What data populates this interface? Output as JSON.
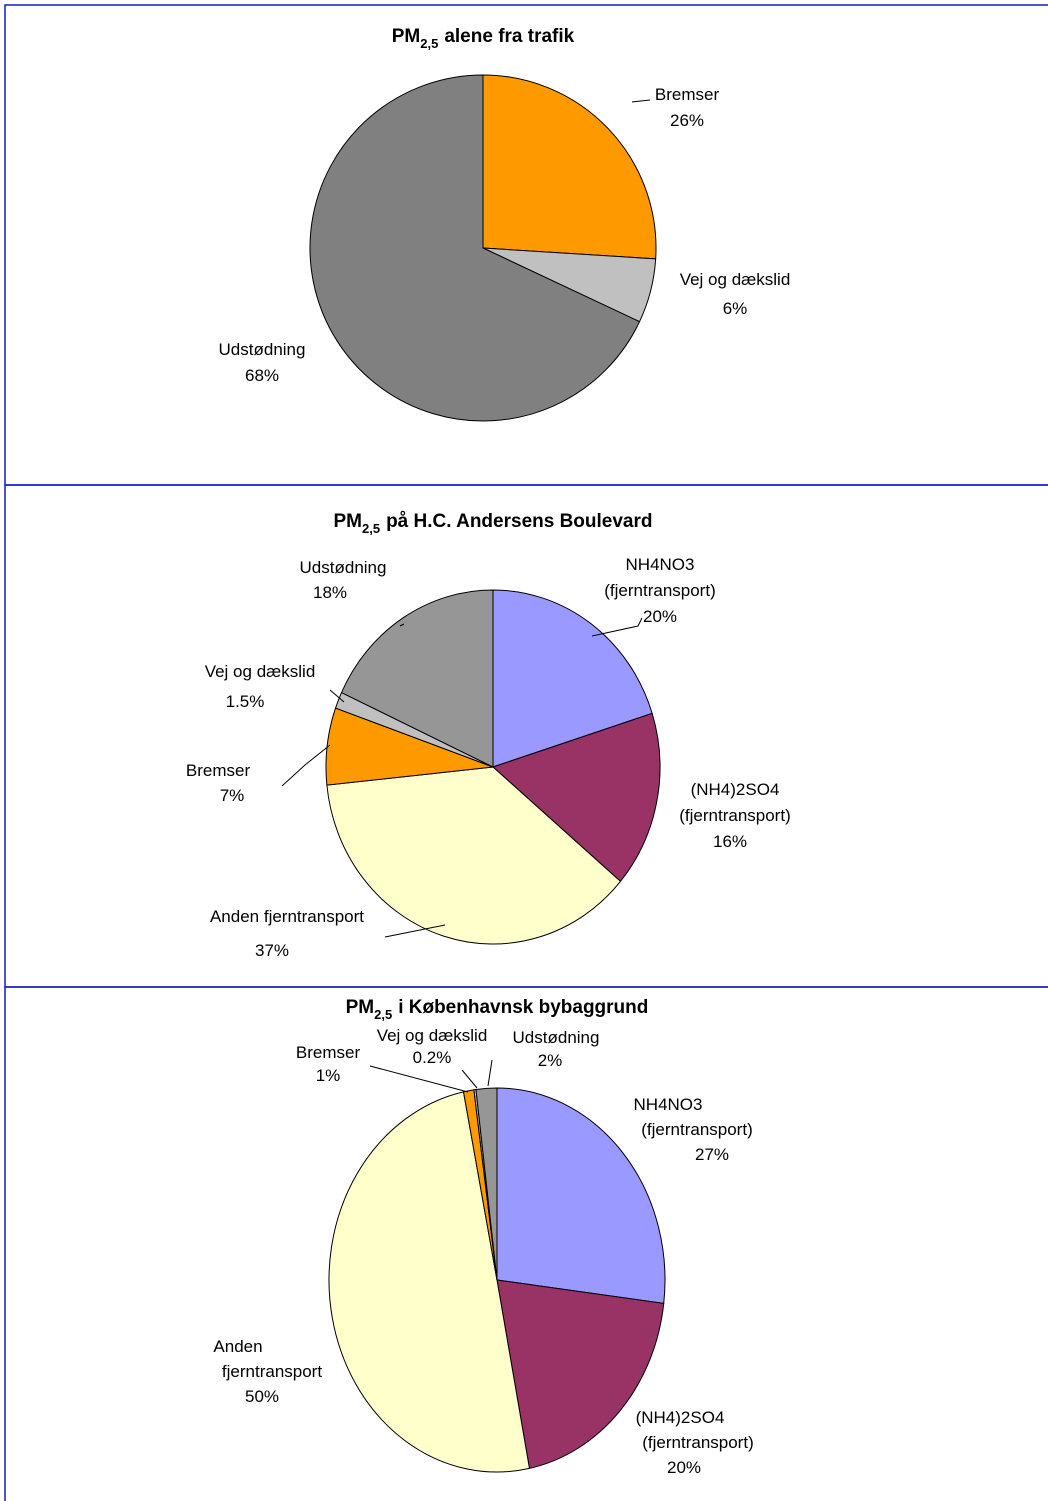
{
  "chart_data": [
    {
      "type": "pie",
      "title": [
        "PM",
        "2,5",
        "alene fra trafik"
      ],
      "categories": [
        [
          "Bremser"
        ],
        [
          "Vej og dækslid"
        ],
        [
          "Udstødning"
        ]
      ],
      "values": [
        26,
        6,
        68
      ],
      "value_labels": [
        "26%",
        "6%",
        "68%"
      ],
      "colors": [
        "#ff9900",
        "#c0c0c0",
        "#808080"
      ]
    },
    {
      "type": "pie",
      "title": [
        "PM",
        "2,5",
        "på H.C. Andersens Boulevard"
      ],
      "categories": [
        [
          "NH4NO3",
          "(fjerntransport)"
        ],
        [
          "(NH4)2SO4",
          "(fjerntransport)"
        ],
        [
          "Anden fjerntransport"
        ],
        [
          "Bremser"
        ],
        [
          "Vej og dækslid"
        ],
        [
          "Udstødning"
        ]
      ],
      "values": [
        20,
        16,
        37,
        7,
        1.5,
        18
      ],
      "value_labels": [
        "20%",
        "16%",
        "37%",
        "7%",
        "1.5%",
        "18%"
      ],
      "colors": [
        "#9999ff",
        "#993366",
        "#ffffcc",
        "#ff9900",
        "#c0c0c0",
        "#969696"
      ]
    },
    {
      "type": "pie",
      "title": [
        "PM",
        "2,5",
        "i Københavnsk bybaggrund"
      ],
      "categories": [
        [
          "NH4NO3",
          "(fjerntransport)"
        ],
        [
          "(NH4)2SO4",
          "(fjerntransport)"
        ],
        [
          "Anden",
          "fjerntransport"
        ],
        [
          "Bremser"
        ],
        [
          "Vej og dækslid"
        ],
        [
          "Udstødning"
        ]
      ],
      "values": [
        27,
        20,
        50,
        1,
        0.2,
        2
      ],
      "value_labels": [
        "27%",
        "20%",
        "50%",
        "1%",
        "0.2%",
        "2%"
      ],
      "colors": [
        "#9999ff",
        "#993366",
        "#ffffcc",
        "#ff9900",
        "#c0c0c0",
        "#969696"
      ]
    }
  ]
}
